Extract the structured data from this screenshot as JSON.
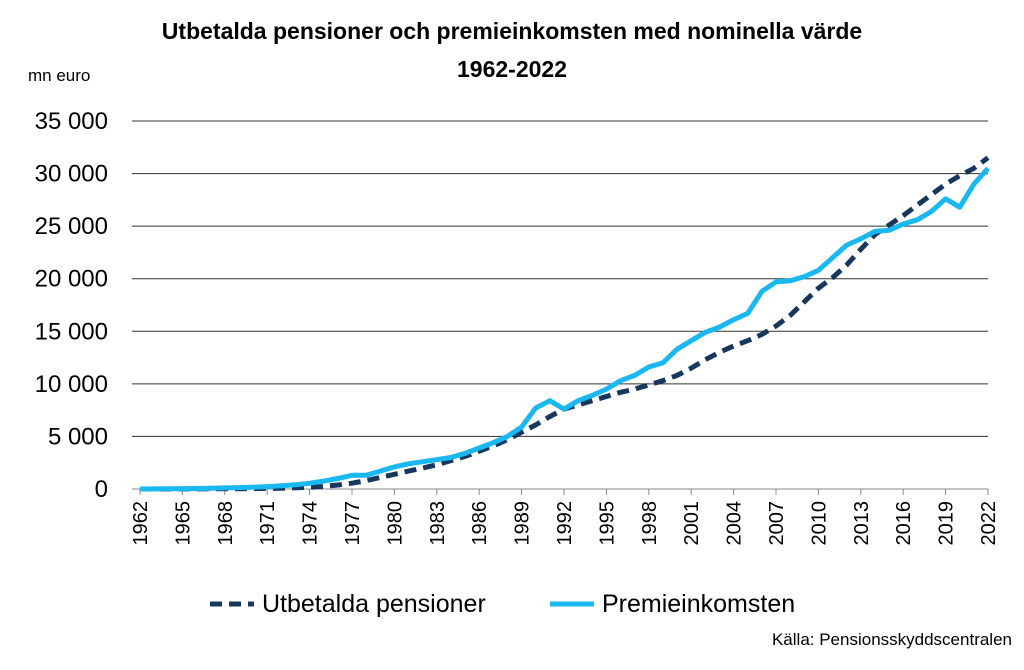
{
  "chart_data": {
    "type": "line",
    "title": "Utbetalda pensioner och premieinkomsten med nominella värde",
    "subtitle": "1962-2022",
    "ylabel": "mn euro",
    "source": "Källa: Pensionsskyddscentralen",
    "ylim": [
      0,
      35000
    ],
    "yticks": [
      0,
      5000,
      10000,
      15000,
      20000,
      25000,
      30000,
      35000
    ],
    "ytick_labels": [
      "0",
      "5 000",
      "10 000",
      "15 000",
      "20 000",
      "25 000",
      "30 000",
      "35 000"
    ],
    "xlim": [
      1962,
      2022
    ],
    "xticks": [
      1962,
      1965,
      1968,
      1971,
      1974,
      1977,
      1980,
      1983,
      1986,
      1989,
      1992,
      1995,
      1998,
      2001,
      2004,
      2007,
      2010,
      2013,
      2016,
      2019,
      2022
    ],
    "grid": true,
    "legend_position": "bottom",
    "x": [
      1962,
      1963,
      1964,
      1965,
      1966,
      1967,
      1968,
      1969,
      1970,
      1971,
      1972,
      1973,
      1974,
      1975,
      1976,
      1977,
      1978,
      1979,
      1980,
      1981,
      1982,
      1983,
      1984,
      1985,
      1986,
      1987,
      1988,
      1989,
      1990,
      1991,
      1992,
      1993,
      1994,
      1995,
      1996,
      1997,
      1998,
      1999,
      2000,
      2001,
      2002,
      2003,
      2004,
      2005,
      2006,
      2007,
      2008,
      2009,
      2010,
      2011,
      2012,
      2013,
      2014,
      2015,
      2016,
      2017,
      2018,
      2019,
      2020,
      2021,
      2022
    ],
    "series": [
      {
        "name": "Utbetalda pensioner",
        "color": "#17375E",
        "style": "dashed",
        "values": [
          0,
          0,
          0,
          5,
          10,
          15,
          20,
          30,
          40,
          60,
          80,
          110,
          160,
          250,
          380,
          550,
          800,
          1100,
          1400,
          1700,
          2000,
          2300,
          2700,
          3100,
          3600,
          4100,
          4700,
          5400,
          6100,
          6900,
          7600,
          8000,
          8400,
          8800,
          9200,
          9500,
          9900,
          10300,
          10800,
          11500,
          12300,
          13000,
          13600,
          14100,
          14700,
          15500,
          16500,
          17800,
          19100,
          20100,
          21300,
          22800,
          24200,
          25100,
          26000,
          27000,
          28000,
          29000,
          29800,
          30500,
          31500
        ]
      },
      {
        "name": "Premieinkomsten",
        "color": "#19B8F0",
        "style": "solid",
        "values": [
          0,
          10,
          20,
          30,
          50,
          70,
          100,
          130,
          170,
          230,
          300,
          400,
          550,
          750,
          1000,
          1300,
          1300,
          1700,
          2100,
          2400,
          2600,
          2800,
          3000,
          3400,
          3900,
          4400,
          5000,
          5900,
          7700,
          8400,
          7600,
          8400,
          8900,
          9500,
          10300,
          10800,
          11600,
          12000,
          13300,
          14100,
          14900,
          15400,
          16100,
          16700,
          18800,
          19700,
          19800,
          20200,
          20800,
          22000,
          23200,
          23800,
          24500,
          24600,
          25200,
          25600,
          26400,
          27600,
          26800,
          29000,
          30500
        ]
      }
    ]
  }
}
